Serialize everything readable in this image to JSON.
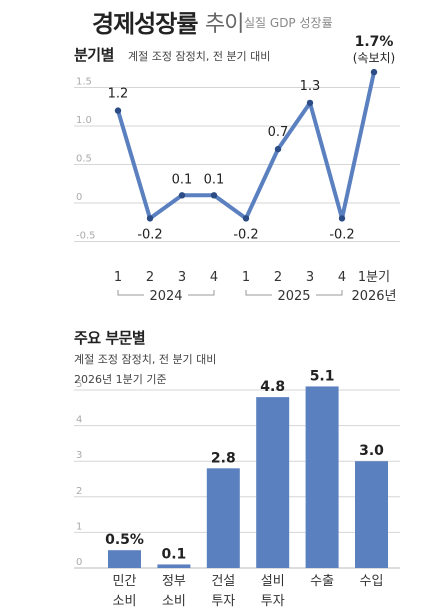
{
  "header": {
    "title": "경제성장률",
    "title_suffix": "추이",
    "note": "실질 GDP 성장률"
  },
  "colors": {
    "accent": "#5b80c0",
    "grid": "#d6d6d6",
    "axis_text": "#aaaaaa"
  },
  "chart_data": [
    {
      "type": "line",
      "section_title": "분기별",
      "section_note": "계절 조정 잠정치, 전 분기 대비",
      "yticks": [
        "1.5",
        "1.0",
        "0.5",
        "0",
        "-0.5"
      ],
      "ytick_values": [
        1.5,
        1.0,
        0.5,
        0,
        -0.5
      ],
      "ylim": [
        -0.5,
        1.5
      ],
      "categories": [
        "1",
        "2",
        "3",
        "4",
        "1",
        "2",
        "3",
        "4",
        "1분기"
      ],
      "year_groups": [
        "2024",
        "2025",
        "2026년"
      ],
      "values": [
        1.2,
        -0.2,
        0.1,
        0.1,
        -0.2,
        0.7,
        1.3,
        -0.2,
        1.7
      ],
      "value_labels": [
        "1.2",
        "-0.2",
        "0.1",
        "0.1",
        "-0.2",
        "0.7",
        "1.3",
        "-0.2",
        "1.7%"
      ],
      "last_point_note": "(속보치)"
    },
    {
      "type": "bar",
      "section_title": "주요 부문별",
      "section_note_lines": [
        "계절 조정 잠정치, 전 분기 대비",
        "2026년 1분기 기준"
      ],
      "yticks": [
        "5",
        "4",
        "3",
        "2",
        "1",
        "0"
      ],
      "ytick_values": [
        5,
        4,
        3,
        2,
        1,
        0
      ],
      "ylim": [
        0,
        5.5
      ],
      "categories": [
        [
          "민간",
          "소비"
        ],
        [
          "정부",
          "소비"
        ],
        [
          "건설",
          "투자"
        ],
        [
          "설비",
          "투자"
        ],
        [
          "수출"
        ],
        [
          "수입"
        ]
      ],
      "values": [
        0.5,
        0.1,
        2.8,
        4.8,
        5.1,
        3.0
      ],
      "value_labels": [
        "0.5%",
        "0.1",
        "2.8",
        "4.8",
        "5.1",
        "3.0"
      ]
    }
  ]
}
